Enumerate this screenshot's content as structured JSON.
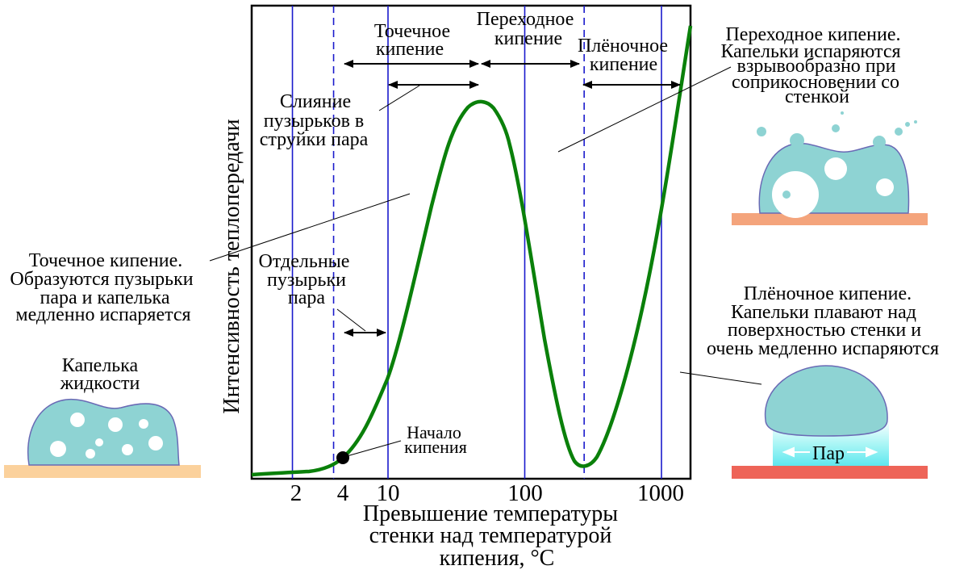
{
  "colors": {
    "curve": "#0a800a",
    "vline": "#1a1acc",
    "droplet": "#8ed3d3",
    "droplet_edge": "#6a6ab5",
    "plate_cold": "#fbd19c",
    "plate_warm": "#f4a47c",
    "plate_hot": "#ee6458",
    "vapor": "#9ff4f4"
  },
  "axes": {
    "ylabel": "Интенсивность теплопередачи",
    "xlabel_lines": [
      "Превышение температуры",
      "стенки над температурой",
      "кипения,  °C"
    ],
    "x_ticks": [
      "2",
      "4",
      "10",
      "100",
      "1000"
    ]
  },
  "chart_data": {
    "type": "line",
    "x_scale": "log",
    "x_unit": "°C",
    "xlim": [
      1,
      1500
    ],
    "x_ticks": [
      2,
      4,
      10,
      100,
      1000
    ],
    "solid_lines_x": [
      2,
      10,
      100,
      1000
    ],
    "dashed_lines_x": [
      4,
      272
    ],
    "onset_x": 4
  },
  "regions": {
    "nucleate": [
      "Точечное",
      "кипение"
    ],
    "transition": [
      "Переходное",
      "кипение"
    ],
    "film": [
      "Плёночное",
      "кипение"
    ]
  },
  "annotations": {
    "isolated_bubbles": [
      "Отдельные",
      "пузырьки",
      "пара"
    ],
    "bubble_merge": [
      "Слияние",
      "пузырьков в",
      "струйки пара"
    ],
    "onset": [
      "Начало",
      "кипения"
    ]
  },
  "side_notes": {
    "left_nucleate": [
      "Точечное кипение.",
      "Образуются пузырьки",
      "пара и капелька",
      "медленно испаряется"
    ],
    "droplet_label": [
      "Капелька",
      "жидкости"
    ],
    "right_transition": [
      "Переходное кипение.",
      "Капельки испаряются",
      "взрывообразно при",
      "соприкосновении со",
      "стенкой"
    ],
    "right_film": [
      "Плёночное кипение.",
      "Капельки плавают над",
      "поверхностью стенки и",
      "очень медленно испаряются"
    ],
    "vapor_label": "Пар"
  }
}
